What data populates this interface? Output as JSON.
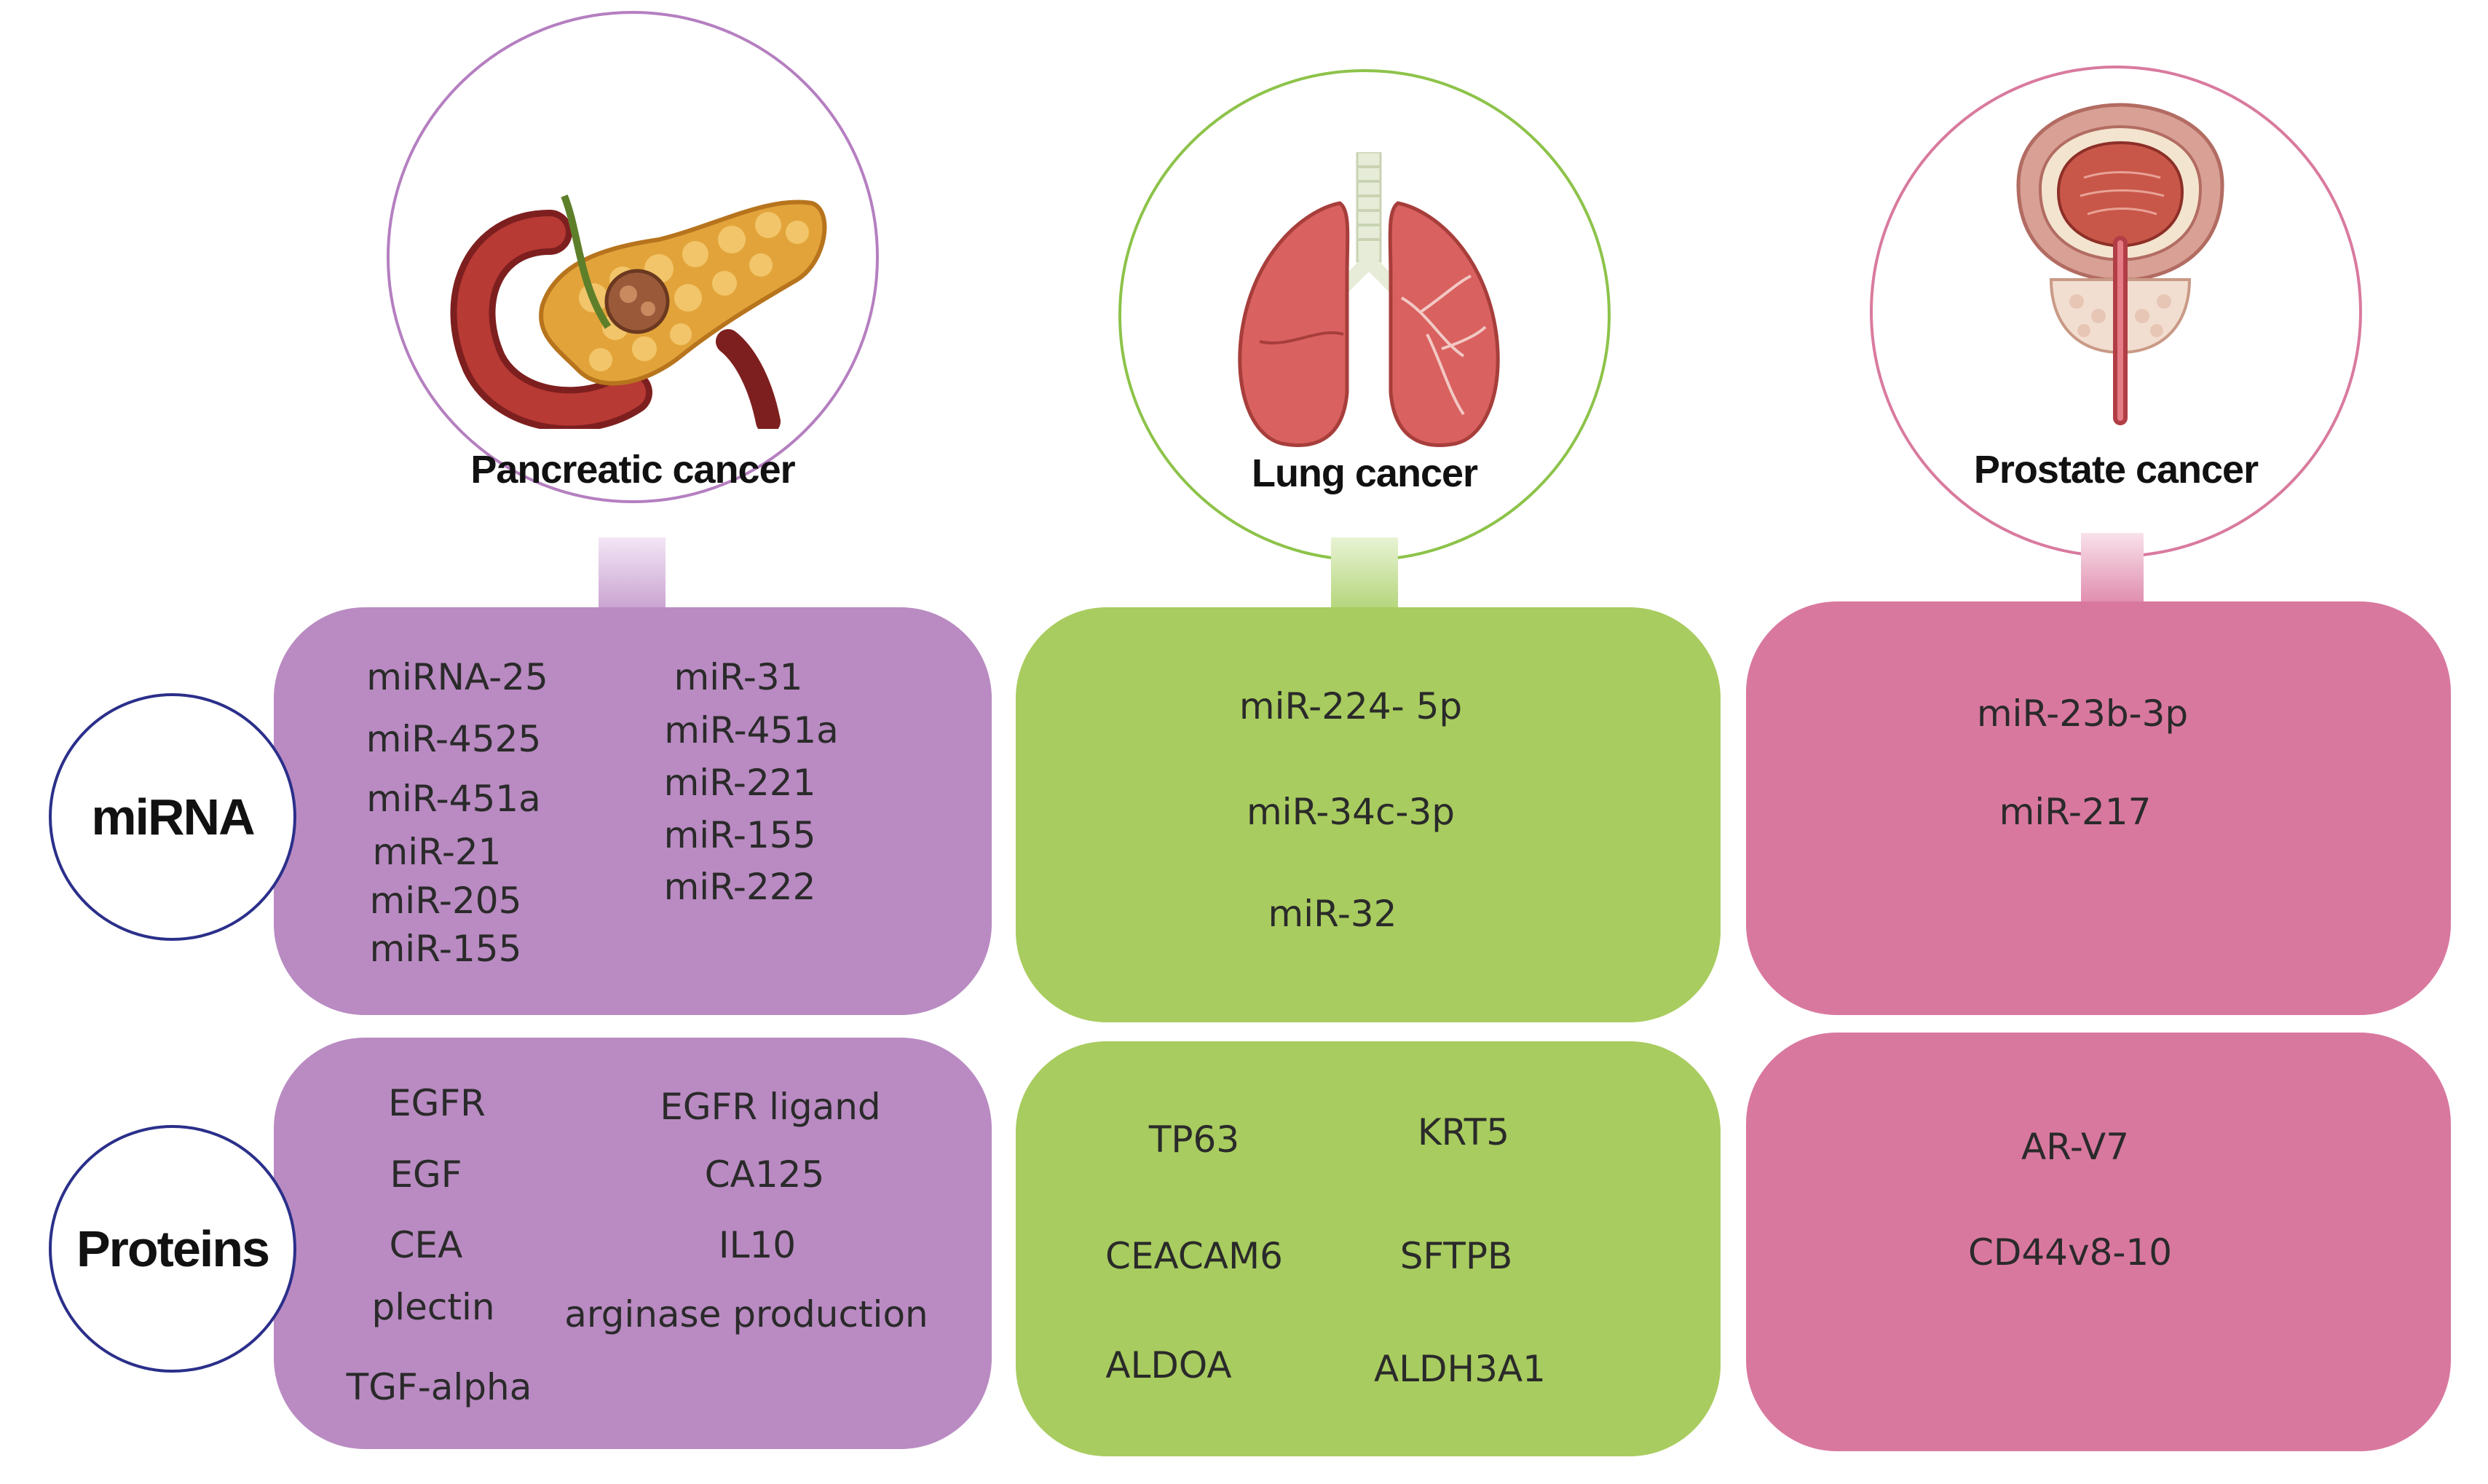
{
  "row_labels": {
    "mirna": "miRNA",
    "proteins": "Proteins"
  },
  "colors": {
    "pancreatic": "#b98bc2",
    "lung": "#a8cc5f",
    "prostate": "#d9789f",
    "label_border": "#2b2f8a"
  },
  "cancers": {
    "pancreatic": {
      "title": "Pancreatic cancer",
      "icon": "pancreas-icon",
      "mirna": [
        "miRNA-25",
        "miR-4525",
        "miR-451a",
        "miR-21",
        "miR-205",
        "miR-155",
        "miR-31",
        "miR-451a",
        "miR-221",
        "miR-155",
        "miR-222"
      ],
      "proteins": [
        "EGFR",
        "EGF",
        "CEA",
        "plectin",
        "TGF-alpha",
        "EGFR ligand",
        "CA125",
        "IL10",
        "arginase production"
      ]
    },
    "lung": {
      "title": "Lung cancer",
      "icon": "lungs-icon",
      "mirna": [
        "miR-224- 5p",
        "miR-34c-3p",
        "miR-32"
      ],
      "proteins": [
        "TP63",
        "KRT5",
        "CEACAM6",
        "SFTPB",
        "ALDOA",
        "ALDH3A1"
      ]
    },
    "prostate": {
      "title": "Prostate cancer",
      "icon": "prostate-icon",
      "mirna": [
        "miR-23b-3p",
        "miR-217"
      ],
      "proteins": [
        "AR-V7",
        "CD44v8-10"
      ]
    }
  }
}
